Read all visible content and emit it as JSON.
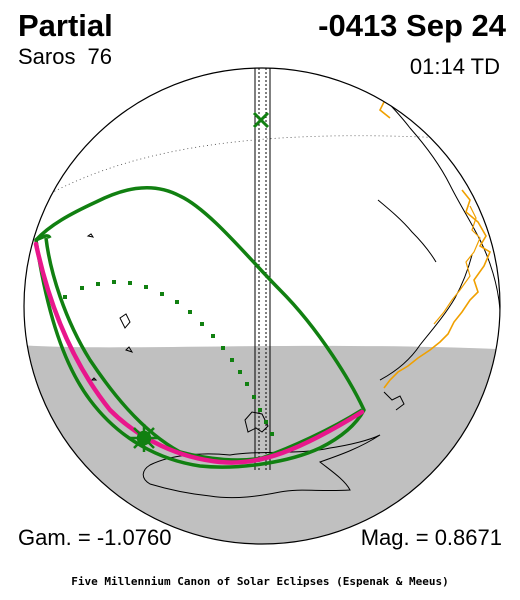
{
  "header": {
    "eclipse_type": "Partial",
    "date": "-0413 Sep 24",
    "saros_label": "Saros",
    "saros_number": "76",
    "time": "01:14 TD"
  },
  "footer_stats": {
    "gamma": "Gam. = -1.0760",
    "magnitude": "Mag. = 0.8671"
  },
  "credit": "Five Millennium Canon of Solar Eclipses (Espenak & Meeus)",
  "colors": {
    "eclipse_limits": "#118011",
    "max_eclipse_curve": "#e8178c",
    "coastline_highlight": "#f0a000",
    "night_shade": "#c0c0c0"
  },
  "markers": {
    "greatest_eclipse": "star-marker",
    "sub_solar_point": "x-marker"
  }
}
